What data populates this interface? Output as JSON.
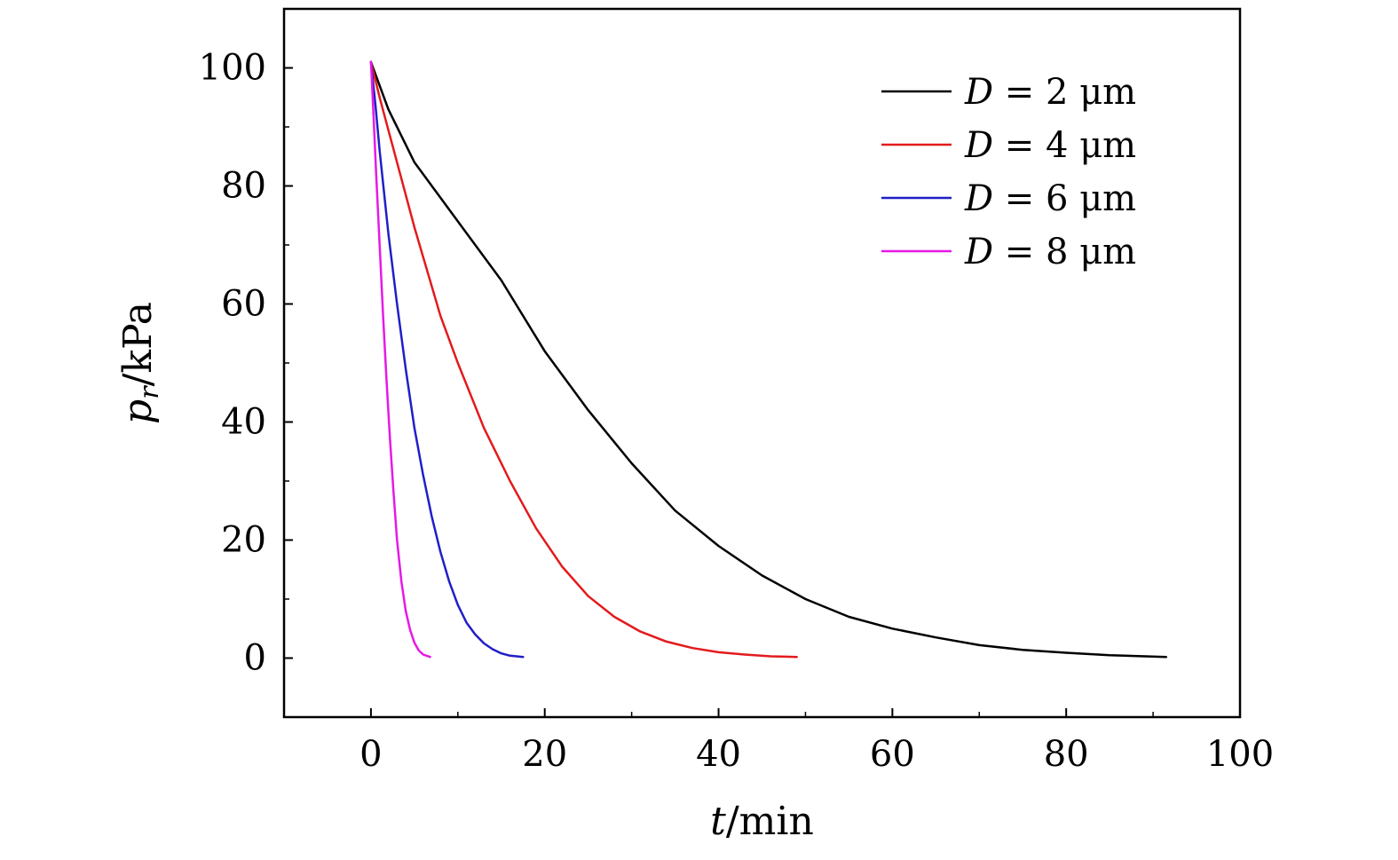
{
  "chart_data": {
    "type": "line",
    "xlabel_var": "t",
    "xlabel_unit": "/min",
    "ylabel_var": "p",
    "ylabel_sub": "r",
    "ylabel_unit": "/kPa",
    "xlim": [
      -10,
      100
    ],
    "ylim": [
      -10,
      110
    ],
    "x_ticks": [
      0,
      20,
      40,
      60,
      80,
      100
    ],
    "y_ticks": [
      0,
      20,
      40,
      60,
      80,
      100
    ],
    "x_tick_labels": [
      "0",
      "20",
      "40",
      "60",
      "80",
      "100"
    ],
    "y_tick_labels": [
      "0",
      "20",
      "40",
      "60",
      "80",
      "100"
    ],
    "grid": false,
    "legend_position": "top-right",
    "series": [
      {
        "name": "D = 2 μm",
        "name_var": "D",
        "name_rest": " = 2 μm",
        "color": "#000000",
        "x": [
          0,
          2,
          5,
          10,
          15,
          20,
          25,
          30,
          35,
          40,
          45,
          50,
          55,
          60,
          65,
          70,
          75,
          80,
          85,
          91.5
        ],
        "y": [
          101,
          93,
          84,
          74,
          64,
          52,
          42,
          33,
          25,
          19,
          14,
          10,
          7,
          5,
          3.5,
          2.2,
          1.4,
          0.9,
          0.5,
          0.2
        ]
      },
      {
        "name": "D = 4 μm",
        "name_var": "D",
        "name_rest": " = 4 μm",
        "color": "#e31a1c",
        "x": [
          0,
          1,
          3,
          5,
          8,
          10,
          13,
          16,
          19,
          22,
          25,
          28,
          31,
          34,
          37,
          40,
          43,
          46,
          49
        ],
        "y": [
          101,
          95,
          84,
          73,
          58,
          50,
          39,
          30,
          22,
          15.5,
          10.5,
          7,
          4.5,
          2.8,
          1.7,
          1,
          0.6,
          0.3,
          0.2
        ]
      },
      {
        "name": "D = 6 μm",
        "name_var": "D",
        "name_rest": " = 6 μm",
        "color": "#1f1fc8",
        "x": [
          0,
          0.5,
          1,
          2,
          3,
          4,
          5,
          6,
          7,
          8,
          9,
          10,
          11,
          12,
          13,
          14,
          15,
          16,
          17.5
        ],
        "y": [
          101,
          94,
          86,
          72,
          60,
          49,
          39,
          31,
          24,
          18,
          13,
          9,
          6,
          4,
          2.5,
          1.5,
          0.8,
          0.4,
          0.2
        ]
      },
      {
        "name": "D = 8 μm",
        "name_var": "D",
        "name_rest": " = 8 μm",
        "color": "#e619e6",
        "x": [
          0,
          0.3,
          0.6,
          1,
          1.4,
          1.8,
          2.2,
          2.6,
          3,
          3.5,
          4,
          4.5,
          5,
          5.5,
          6,
          6.8
        ],
        "y": [
          101,
          92,
          82,
          70,
          58,
          47,
          37,
          28,
          20,
          13,
          8,
          4.8,
          2.6,
          1.3,
          0.6,
          0.2
        ]
      }
    ]
  }
}
